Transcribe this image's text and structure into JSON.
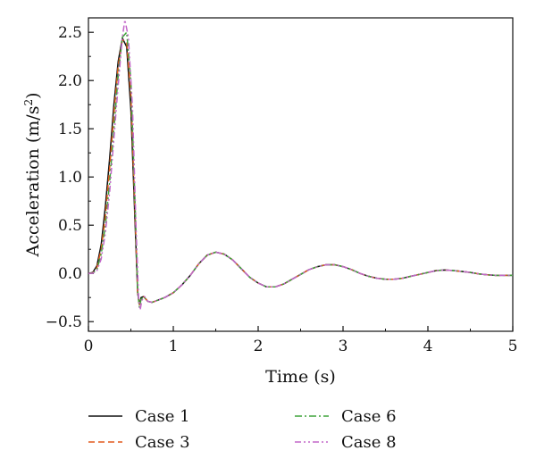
{
  "chart_data": {
    "type": "line",
    "title": "",
    "xlabel": "Time (s)",
    "ylabel": "Acceleration (m/s²)",
    "ylabel_parts": {
      "main": "Acceleration (m/s",
      "sup": "2",
      "end": ")"
    },
    "xlim": [
      0,
      5
    ],
    "ylim": [
      -0.6,
      2.65
    ],
    "xticks": [
      0,
      1,
      2,
      3,
      4,
      5
    ],
    "xtick_labels": [
      "0",
      "1",
      "2",
      "3",
      "4",
      "5"
    ],
    "yticks": [
      -0.5,
      0.0,
      0.5,
      1.0,
      1.5,
      2.0,
      2.5
    ],
    "ytick_labels": [
      "−0.5",
      "0.0",
      "0.5",
      "1.0",
      "1.5",
      "2.0",
      "2.5"
    ],
    "grid": false,
    "legend_position": "bottom",
    "series": [
      {
        "name": "Case 1",
        "color": "#111111",
        "dash": "solid",
        "points": [
          [
            0,
            0
          ],
          [
            0.05,
            0.01
          ],
          [
            0.1,
            0.08
          ],
          [
            0.15,
            0.3
          ],
          [
            0.2,
            0.7
          ],
          [
            0.25,
            1.2
          ],
          [
            0.3,
            1.75
          ],
          [
            0.35,
            2.2
          ],
          [
            0.4,
            2.44
          ],
          [
            0.45,
            2.35
          ],
          [
            0.5,
            1.7
          ],
          [
            0.55,
            0.5
          ],
          [
            0.58,
            -0.2
          ],
          [
            0.6,
            -0.32
          ],
          [
            0.62,
            -0.25
          ],
          [
            0.65,
            -0.24
          ],
          [
            0.7,
            -0.29
          ],
          [
            0.75,
            -0.3
          ],
          [
            0.9,
            -0.25
          ],
          [
            1.0,
            -0.2
          ],
          [
            1.1,
            -0.12
          ],
          [
            1.2,
            -0.02
          ],
          [
            1.3,
            0.1
          ],
          [
            1.4,
            0.19
          ],
          [
            1.5,
            0.22
          ],
          [
            1.6,
            0.2
          ],
          [
            1.7,
            0.14
          ],
          [
            1.8,
            0.05
          ],
          [
            1.9,
            -0.04
          ],
          [
            2.0,
            -0.1
          ],
          [
            2.1,
            -0.14
          ],
          [
            2.2,
            -0.14
          ],
          [
            2.3,
            -0.11
          ],
          [
            2.4,
            -0.06
          ],
          [
            2.5,
            -0.01
          ],
          [
            2.6,
            0.04
          ],
          [
            2.7,
            0.07
          ],
          [
            2.8,
            0.09
          ],
          [
            2.9,
            0.09
          ],
          [
            3.0,
            0.07
          ],
          [
            3.1,
            0.04
          ],
          [
            3.2,
            0.0
          ],
          [
            3.3,
            -0.03
          ],
          [
            3.4,
            -0.05
          ],
          [
            3.5,
            -0.06
          ],
          [
            3.6,
            -0.06
          ],
          [
            3.7,
            -0.05
          ],
          [
            3.8,
            -0.03
          ],
          [
            3.9,
            -0.01
          ],
          [
            4.0,
            0.01
          ],
          [
            4.1,
            0.03
          ],
          [
            4.2,
            0.035
          ],
          [
            4.3,
            0.03
          ],
          [
            4.4,
            0.02
          ],
          [
            4.5,
            0.01
          ],
          [
            4.6,
            -0.005
          ],
          [
            4.7,
            -0.015
          ],
          [
            4.8,
            -0.02
          ],
          [
            4.9,
            -0.02
          ],
          [
            5.0,
            -0.02
          ]
        ]
      },
      {
        "name": "Case 3",
        "color": "#e2581b",
        "dash": "dashed",
        "points": [
          [
            0,
            0
          ],
          [
            0.05,
            0.005
          ],
          [
            0.1,
            0.06
          ],
          [
            0.15,
            0.25
          ],
          [
            0.2,
            0.6
          ],
          [
            0.25,
            1.1
          ],
          [
            0.3,
            1.65
          ],
          [
            0.35,
            2.15
          ],
          [
            0.4,
            2.42
          ],
          [
            0.45,
            2.4
          ],
          [
            0.5,
            1.85
          ],
          [
            0.55,
            0.6
          ],
          [
            0.58,
            -0.2
          ],
          [
            0.6,
            -0.34
          ],
          [
            0.62,
            -0.26
          ],
          [
            0.65,
            -0.24
          ],
          [
            0.7,
            -0.29
          ],
          [
            0.75,
            -0.3
          ],
          [
            0.9,
            -0.25
          ],
          [
            1.0,
            -0.2
          ],
          [
            1.1,
            -0.12
          ],
          [
            1.2,
            -0.02
          ],
          [
            1.3,
            0.1
          ],
          [
            1.4,
            0.19
          ],
          [
            1.5,
            0.22
          ],
          [
            1.6,
            0.2
          ],
          [
            1.7,
            0.14
          ],
          [
            1.8,
            0.05
          ],
          [
            1.9,
            -0.04
          ],
          [
            2.0,
            -0.1
          ],
          [
            2.1,
            -0.14
          ],
          [
            2.2,
            -0.14
          ],
          [
            2.3,
            -0.11
          ],
          [
            2.4,
            -0.06
          ],
          [
            2.5,
            -0.01
          ],
          [
            2.6,
            0.04
          ],
          [
            2.7,
            0.07
          ],
          [
            2.8,
            0.09
          ],
          [
            2.9,
            0.09
          ],
          [
            3.0,
            0.07
          ],
          [
            3.1,
            0.04
          ],
          [
            3.2,
            0.0
          ],
          [
            3.3,
            -0.03
          ],
          [
            3.4,
            -0.05
          ],
          [
            3.5,
            -0.06
          ],
          [
            3.6,
            -0.06
          ],
          [
            3.7,
            -0.05
          ],
          [
            3.8,
            -0.03
          ],
          [
            3.9,
            -0.01
          ],
          [
            4.0,
            0.01
          ],
          [
            4.1,
            0.03
          ],
          [
            4.2,
            0.035
          ],
          [
            4.3,
            0.03
          ],
          [
            4.4,
            0.02
          ],
          [
            4.5,
            0.01
          ],
          [
            4.6,
            -0.005
          ],
          [
            4.7,
            -0.015
          ],
          [
            4.8,
            -0.02
          ],
          [
            4.9,
            -0.02
          ],
          [
            5.0,
            -0.02
          ]
        ]
      },
      {
        "name": "Case 6",
        "color": "#3fa33a",
        "dash": "dashdot",
        "points": [
          [
            0,
            0
          ],
          [
            0.05,
            0.003
          ],
          [
            0.1,
            0.04
          ],
          [
            0.15,
            0.2
          ],
          [
            0.2,
            0.5
          ],
          [
            0.25,
            0.95
          ],
          [
            0.3,
            1.5
          ],
          [
            0.35,
            2.05
          ],
          [
            0.4,
            2.45
          ],
          [
            0.45,
            2.5
          ],
          [
            0.5,
            2.0
          ],
          [
            0.55,
            0.7
          ],
          [
            0.58,
            -0.18
          ],
          [
            0.6,
            -0.35
          ],
          [
            0.62,
            -0.27
          ],
          [
            0.65,
            -0.24
          ],
          [
            0.7,
            -0.29
          ],
          [
            0.75,
            -0.3
          ],
          [
            0.9,
            -0.25
          ],
          [
            1.0,
            -0.2
          ],
          [
            1.1,
            -0.12
          ],
          [
            1.2,
            -0.02
          ],
          [
            1.3,
            0.1
          ],
          [
            1.4,
            0.19
          ],
          [
            1.5,
            0.22
          ],
          [
            1.6,
            0.2
          ],
          [
            1.7,
            0.14
          ],
          [
            1.8,
            0.05
          ],
          [
            1.9,
            -0.04
          ],
          [
            2.0,
            -0.1
          ],
          [
            2.1,
            -0.14
          ],
          [
            2.2,
            -0.14
          ],
          [
            2.3,
            -0.11
          ],
          [
            2.4,
            -0.06
          ],
          [
            2.5,
            -0.01
          ],
          [
            2.6,
            0.04
          ],
          [
            2.7,
            0.07
          ],
          [
            2.8,
            0.09
          ],
          [
            2.9,
            0.09
          ],
          [
            3.0,
            0.07
          ],
          [
            3.1,
            0.04
          ],
          [
            3.2,
            0.0
          ],
          [
            3.3,
            -0.03
          ],
          [
            3.4,
            -0.05
          ],
          [
            3.5,
            -0.06
          ],
          [
            3.6,
            -0.06
          ],
          [
            3.7,
            -0.05
          ],
          [
            3.8,
            -0.03
          ],
          [
            3.9,
            -0.01
          ],
          [
            4.0,
            0.01
          ],
          [
            4.1,
            0.03
          ],
          [
            4.2,
            0.035
          ],
          [
            4.3,
            0.03
          ],
          [
            4.4,
            0.02
          ],
          [
            4.5,
            0.01
          ],
          [
            4.6,
            -0.005
          ],
          [
            4.7,
            -0.015
          ],
          [
            4.8,
            -0.02
          ],
          [
            4.9,
            -0.02
          ],
          [
            5.0,
            -0.02
          ]
        ]
      },
      {
        "name": "Case 8",
        "color": "#c267c9",
        "dash": "dashdotdot",
        "points": [
          [
            0,
            0
          ],
          [
            0.05,
            0.002
          ],
          [
            0.1,
            0.03
          ],
          [
            0.15,
            0.15
          ],
          [
            0.2,
            0.42
          ],
          [
            0.25,
            0.85
          ],
          [
            0.3,
            1.4
          ],
          [
            0.35,
            1.95
          ],
          [
            0.4,
            2.45
          ],
          [
            0.43,
            2.63
          ],
          [
            0.47,
            2.45
          ],
          [
            0.52,
            1.7
          ],
          [
            0.56,
            0.5
          ],
          [
            0.59,
            -0.25
          ],
          [
            0.61,
            -0.38
          ],
          [
            0.63,
            -0.28
          ],
          [
            0.66,
            -0.24
          ],
          [
            0.7,
            -0.29
          ],
          [
            0.75,
            -0.3
          ],
          [
            0.9,
            -0.25
          ],
          [
            1.0,
            -0.2
          ],
          [
            1.1,
            -0.12
          ],
          [
            1.2,
            -0.02
          ],
          [
            1.3,
            0.1
          ],
          [
            1.4,
            0.19
          ],
          [
            1.5,
            0.22
          ],
          [
            1.6,
            0.2
          ],
          [
            1.7,
            0.14
          ],
          [
            1.8,
            0.05
          ],
          [
            1.9,
            -0.04
          ],
          [
            2.0,
            -0.1
          ],
          [
            2.1,
            -0.14
          ],
          [
            2.2,
            -0.14
          ],
          [
            2.3,
            -0.11
          ],
          [
            2.4,
            -0.06
          ],
          [
            2.5,
            -0.01
          ],
          [
            2.6,
            0.04
          ],
          [
            2.7,
            0.07
          ],
          [
            2.8,
            0.09
          ],
          [
            2.9,
            0.09
          ],
          [
            3.0,
            0.07
          ],
          [
            3.1,
            0.04
          ],
          [
            3.2,
            0.0
          ],
          [
            3.3,
            -0.03
          ],
          [
            3.4,
            -0.05
          ],
          [
            3.5,
            -0.06
          ],
          [
            3.6,
            -0.06
          ],
          [
            3.7,
            -0.05
          ],
          [
            3.8,
            -0.03
          ],
          [
            3.9,
            -0.01
          ],
          [
            4.0,
            0.01
          ],
          [
            4.1,
            0.03
          ],
          [
            4.2,
            0.035
          ],
          [
            4.3,
            0.03
          ],
          [
            4.4,
            0.02
          ],
          [
            4.5,
            0.01
          ],
          [
            4.6,
            -0.005
          ],
          [
            4.7,
            -0.015
          ],
          [
            4.8,
            -0.02
          ],
          [
            4.9,
            -0.02
          ],
          [
            5.0,
            -0.02
          ]
        ]
      }
    ]
  }
}
